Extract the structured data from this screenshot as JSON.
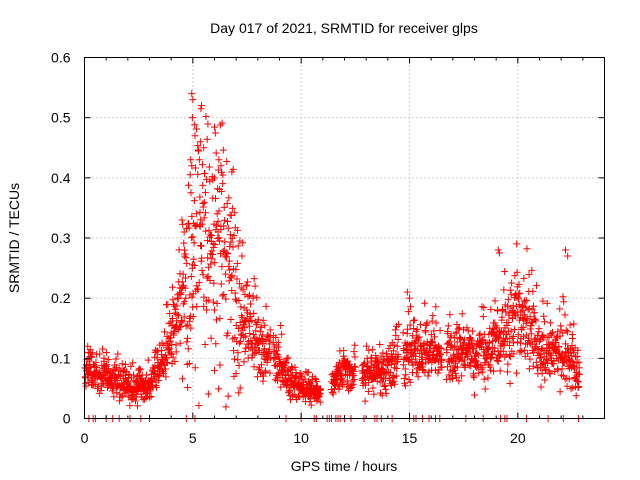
{
  "chart_data": {
    "type": "scatter",
    "title": "Day 017 of 2021, SRMTID for receiver glps",
    "xlabel": "GPS time / hours",
    "ylabel": "SRMTID / TECUs",
    "xlim": [
      0,
      24
    ],
    "ylim": [
      0,
      0.6
    ],
    "xticks": [
      0,
      5,
      10,
      15,
      20
    ],
    "xtick_labels": [
      "0",
      "5",
      "10",
      "15",
      "20"
    ],
    "yticks": [
      0,
      0.1,
      0.2,
      0.3,
      0.4,
      0.5,
      0.6
    ],
    "ytick_labels": [
      "0",
      "0.1",
      "0.2",
      "0.3",
      "0.4",
      "0.5",
      "0.6"
    ],
    "grid": true,
    "marker": "plus",
    "series": [
      {
        "name": "SRMTID",
        "color": "#ff0000",
        "profile": [
          {
            "t": 0.0,
            "y": 0.07
          },
          {
            "t": 0.3,
            "y": 0.09
          },
          {
            "t": 0.6,
            "y": 0.065
          },
          {
            "t": 1.0,
            "y": 0.07
          },
          {
            "t": 1.5,
            "y": 0.06
          },
          {
            "t": 2.0,
            "y": 0.055
          },
          {
            "t": 2.5,
            "y": 0.05
          },
          {
            "t": 3.0,
            "y": 0.055
          },
          {
            "t": 3.4,
            "y": 0.08
          },
          {
            "t": 3.8,
            "y": 0.11
          },
          {
            "t": 4.2,
            "y": 0.15
          },
          {
            "t": 4.6,
            "y": 0.2
          },
          {
            "t": 5.0,
            "y": 0.27
          },
          {
            "t": 5.5,
            "y": 0.3
          },
          {
            "t": 6.0,
            "y": 0.3
          },
          {
            "t": 6.5,
            "y": 0.27
          },
          {
            "t": 7.0,
            "y": 0.2
          },
          {
            "t": 7.5,
            "y": 0.15
          },
          {
            "t": 8.0,
            "y": 0.12
          },
          {
            "t": 8.5,
            "y": 0.11
          },
          {
            "t": 9.0,
            "y": 0.09
          },
          {
            "t": 9.5,
            "y": 0.06
          },
          {
            "t": 10.0,
            "y": 0.05
          },
          {
            "t": 10.5,
            "y": 0.05
          },
          {
            "t": 11.0,
            "y": 0.04
          },
          {
            "t": 12.0,
            "y": 0.08
          },
          {
            "t": 13.0,
            "y": 0.07
          },
          {
            "t": 14.0,
            "y": 0.08
          },
          {
            "t": 15.0,
            "y": 0.11
          },
          {
            "t": 16.0,
            "y": 0.11
          },
          {
            "t": 17.0,
            "y": 0.11
          },
          {
            "t": 18.0,
            "y": 0.1
          },
          {
            "t": 19.0,
            "y": 0.12
          },
          {
            "t": 20.0,
            "y": 0.17
          },
          {
            "t": 20.5,
            "y": 0.16
          },
          {
            "t": 21.0,
            "y": 0.11
          },
          {
            "t": 22.0,
            "y": 0.12
          },
          {
            "t": 22.8,
            "y": 0.08
          }
        ],
        "coverage_gaps": [
          [
            0.6,
            0.65
          ],
          [
            8.6,
            8.7
          ],
          [
            10.9,
            11.4
          ],
          [
            12.5,
            12.8
          ],
          [
            14.5,
            14.7
          ],
          [
            16.5,
            16.7
          ],
          [
            22.9,
            24.0
          ]
        ],
        "highlight_points": [
          {
            "x": 4.95,
            "y": 0.54
          },
          {
            "x": 5.0,
            "y": 0.53
          },
          {
            "x": 4.98,
            "y": 0.5
          },
          {
            "x": 5.4,
            "y": 0.52
          },
          {
            "x": 5.1,
            "y": 0.47
          },
          {
            "x": 5.35,
            "y": 0.46
          },
          {
            "x": 5.5,
            "y": 0.45
          },
          {
            "x": 4.9,
            "y": 0.43
          },
          {
            "x": 4.95,
            "y": 0.42
          },
          {
            "x": 6.2,
            "y": 0.43
          },
          {
            "x": 6.3,
            "y": 0.42
          },
          {
            "x": 6.8,
            "y": 0.41
          },
          {
            "x": 6.0,
            "y": 0.4
          },
          {
            "x": 4.5,
            "y": 0.33
          },
          {
            "x": 4.6,
            "y": 0.31
          },
          {
            "x": 19.1,
            "y": 0.28
          },
          {
            "x": 19.15,
            "y": 0.275
          },
          {
            "x": 22.2,
            "y": 0.28
          },
          {
            "x": 22.3,
            "y": 0.27
          },
          {
            "x": 14.9,
            "y": 0.21
          },
          {
            "x": 15.0,
            "y": 0.2
          },
          {
            "x": 0.15,
            "y": 0.12
          },
          {
            "x": 0.2,
            "y": 0.11
          },
          {
            "x": 9.1,
            "y": 0.14
          },
          {
            "x": 6.0,
            "y": 0.08
          }
        ],
        "zero_markers_x": [
          0.2,
          0.4,
          0.5,
          1.0,
          1.3,
          1.6,
          2.1,
          2.6,
          3.0,
          4.7,
          5.1,
          9.3,
          10.0,
          10.6,
          10.7,
          11.2,
          11.3,
          11.4,
          11.6,
          11.7,
          11.8,
          12.0,
          12.3,
          12.9,
          13.4,
          13.5,
          13.7,
          14.2,
          15.0,
          15.2,
          15.3,
          15.6,
          15.9,
          16.2,
          16.4,
          17.6,
          18.4,
          19.2,
          19.4,
          19.5,
          20.4,
          21.4,
          22.1,
          22.8
        ]
      }
    ]
  }
}
